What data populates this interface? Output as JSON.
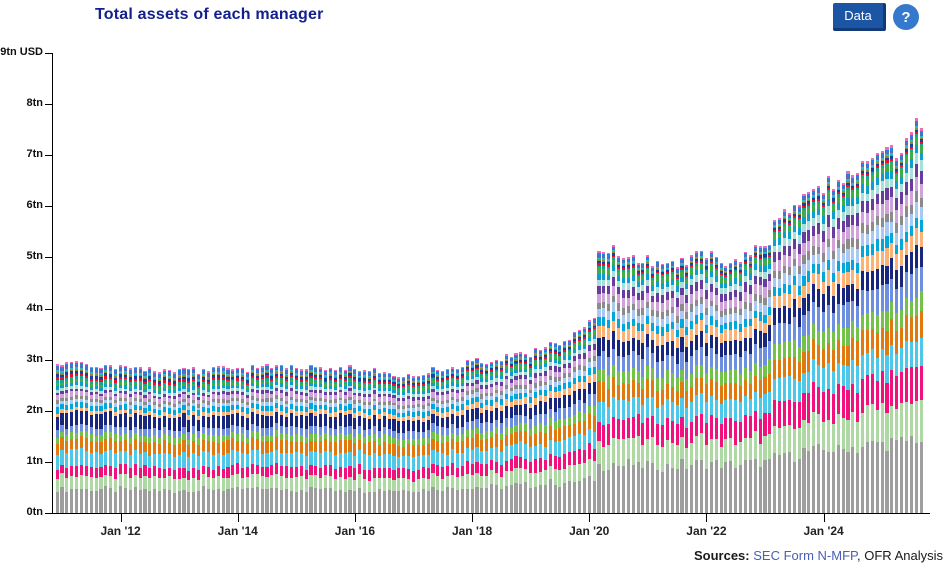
{
  "header": {
    "title": "Total assets of each manager",
    "title_color": "#14208c",
    "data_button_label": "Data",
    "data_button_color": "#1d55a5",
    "help_button_label": "?",
    "help_button_color": "#3579cd"
  },
  "footer": {
    "sources_label": "Sources:",
    "link_text": "SEC Form N-MFP",
    "separator": ", ",
    "analysis_text": "OFR Analysis",
    "link_color": "#4a5fb5"
  },
  "chart_data": {
    "type": "stacked-bar",
    "title": "Total assets of each manager",
    "ylabel": "tn USD",
    "ylim": [
      0,
      9
    ],
    "grid": false,
    "legend": "none",
    "y_ticks": [
      "0tn",
      "1tn",
      "2tn",
      "3tn",
      "4tn",
      "5tn",
      "6tn",
      "7tn",
      "8tn",
      "9tn USD"
    ],
    "x_start_month": "2010-12",
    "x_end_month": "2025-09",
    "months": 178,
    "x_ticks": [
      {
        "label": "Jan '12",
        "month": 13
      },
      {
        "label": "Jan '14",
        "month": 37
      },
      {
        "label": "Jan '16",
        "month": 61
      },
      {
        "label": "Jan '18",
        "month": 85
      },
      {
        "label": "Jan '20",
        "month": 109
      },
      {
        "label": "Jan '22",
        "month": 133
      },
      {
        "label": "Jan '24",
        "month": 157
      }
    ],
    "total_keyframes": [
      [
        0,
        2.97
      ],
      [
        13,
        2.88
      ],
      [
        25,
        2.78
      ],
      [
        37,
        2.82
      ],
      [
        49,
        2.88
      ],
      [
        61,
        2.85
      ],
      [
        71,
        2.68
      ],
      [
        85,
        2.95
      ],
      [
        97,
        3.12
      ],
      [
        108,
        3.55
      ],
      [
        110,
        3.85
      ],
      [
        111,
        5.2
      ],
      [
        112,
        5.0
      ],
      [
        114,
        5.15
      ],
      [
        120,
        4.95
      ],
      [
        127,
        4.9
      ],
      [
        133,
        5.05
      ],
      [
        138,
        4.9
      ],
      [
        144,
        5.2
      ],
      [
        146,
        5.35
      ],
      [
        147,
        5.8
      ],
      [
        152,
        6.05
      ],
      [
        157,
        6.4
      ],
      [
        160,
        6.55
      ],
      [
        163,
        6.6
      ],
      [
        169,
        7.0
      ],
      [
        173,
        7.1
      ],
      [
        177,
        7.7
      ]
    ],
    "share_anchor_months": [
      0,
      61,
      110,
      114,
      177
    ],
    "series": [
      {
        "id": "manager-01",
        "color": "#9e9e9e",
        "shares": [
          0.155,
          0.165,
          0.18,
          0.2,
          0.21
        ]
      },
      {
        "id": "manager-02",
        "color": "#aed9a5",
        "shares": [
          0.085,
          0.085,
          0.09,
          0.1,
          0.105
        ]
      },
      {
        "id": "manager-03",
        "color": "#f0117d",
        "shares": [
          0.065,
          0.068,
          0.075,
          0.09,
          0.096
        ]
      },
      {
        "id": "manager-04",
        "color": "#4ec8e8",
        "shares": [
          0.1,
          0.095,
          0.085,
          0.08,
          0.073
        ]
      },
      {
        "id": "manager-05",
        "color": "#e0790e",
        "shares": [
          0.078,
          0.08,
          0.075,
          0.07,
          0.068
        ]
      },
      {
        "id": "manager-06",
        "color": "#74c24a",
        "shares": [
          0.04,
          0.045,
          0.05,
          0.055,
          0.052
        ]
      },
      {
        "id": "manager-07",
        "color": "#6e8fdf",
        "shares": [
          0.045,
          0.05,
          0.06,
          0.07,
          0.073
        ]
      },
      {
        "id": "manager-08",
        "color": "#19267e",
        "shares": [
          0.09,
          0.08,
          0.07,
          0.062,
          0.057
        ]
      },
      {
        "id": "manager-09",
        "color": "#fcb275",
        "shares": [
          0.022,
          0.03,
          0.04,
          0.045,
          0.045
        ]
      },
      {
        "id": "manager-10",
        "color": "#00a7d8",
        "shares": [
          0.035,
          0.035,
          0.034,
          0.034,
          0.032
        ]
      },
      {
        "id": "manager-11",
        "color": "#a7c9f4",
        "shares": [
          0.02,
          0.025,
          0.03,
          0.035,
          0.04
        ]
      },
      {
        "id": "manager-12",
        "color": "#8b8b8b",
        "shares": [
          0.022,
          0.022,
          0.025,
          0.027,
          0.027
        ]
      },
      {
        "id": "manager-13",
        "color": "#cfa3da",
        "shares": [
          0.03,
          0.032,
          0.035,
          0.038,
          0.04
        ]
      },
      {
        "id": "manager-14",
        "color": "#663c9e",
        "shares": [
          0.016,
          0.02,
          0.028,
          0.033,
          0.035
        ]
      },
      {
        "id": "manager-15",
        "color": "#a6e0d8",
        "shares": [
          0.02,
          0.02,
          0.022,
          0.025,
          0.027
        ]
      },
      {
        "id": "manager-16",
        "color": "#0d9fcc",
        "shares": [
          0.022,
          0.022,
          0.022,
          0.023,
          0.023
        ]
      },
      {
        "id": "manager-17",
        "color": "#3fae49",
        "shares": [
          0.018,
          0.018,
          0.02,
          0.022,
          0.021
        ]
      },
      {
        "id": "manager-18",
        "color": "#16a58e",
        "shares": [
          0.018,
          0.015,
          0.011,
          0.009,
          0.007
        ]
      },
      {
        "id": "manager-19",
        "color": "#e8112d",
        "shares": [
          0.016,
          0.013,
          0.01,
          0.008,
          0.006
        ]
      },
      {
        "id": "manager-20",
        "color": "#1b3f9e",
        "shares": [
          0.018,
          0.015,
          0.011,
          0.009,
          0.007
        ]
      },
      {
        "id": "manager-21",
        "color": "#8a8a3a",
        "shares": [
          0.011,
          0.009,
          0.007,
          0.005,
          0.004
        ]
      },
      {
        "id": "manager-22",
        "color": "#2bb8c8",
        "shares": [
          0.013,
          0.011,
          0.008,
          0.007,
          0.006
        ]
      },
      {
        "id": "manager-23",
        "color": "#5b6ab5",
        "shares": [
          0.014,
          0.012,
          0.009,
          0.008,
          0.007
        ]
      },
      {
        "id": "manager-24",
        "color": "#2a7de1",
        "shares": [
          0.016,
          0.013,
          0.01,
          0.008,
          0.007
        ]
      },
      {
        "id": "manager-25",
        "color": "#f269b4",
        "shares": [
          0.011,
          0.009,
          0.007,
          0.006,
          0.008
        ]
      }
    ]
  }
}
